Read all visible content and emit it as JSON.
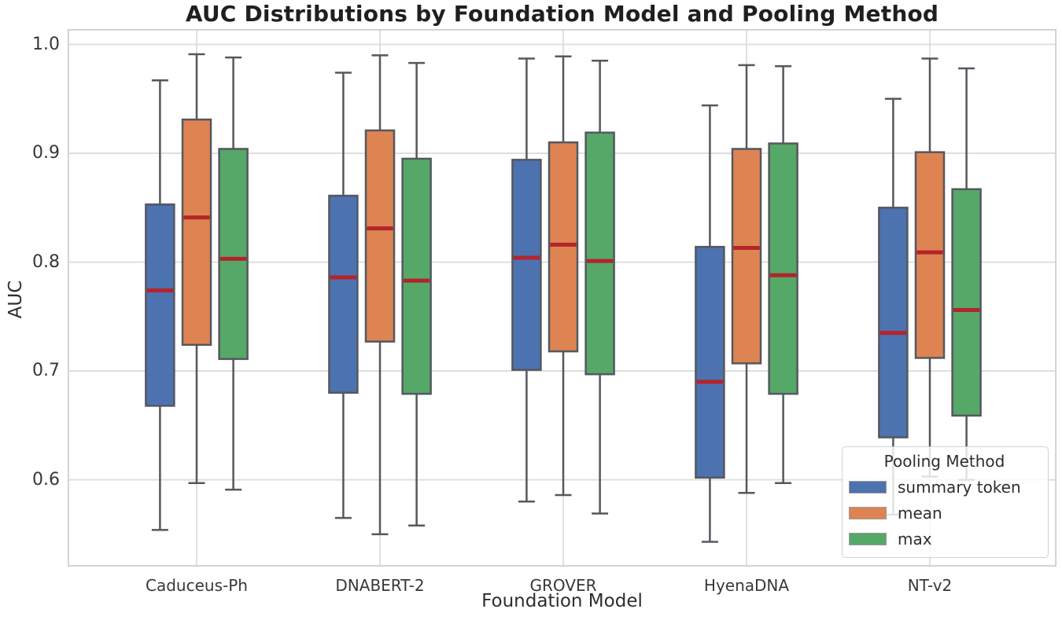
{
  "chart_data": {
    "type": "box",
    "title": "AUC Distributions by Foundation Model and Pooling Method",
    "xlabel": "Foundation Model",
    "ylabel": "AUC",
    "categories": [
      "Caduceus-Ph",
      "DNABERT-2",
      "GROVER",
      "HyenaDNA",
      "NT-v2"
    ],
    "yticks": [
      {
        "label": "1.0",
        "value": 1.0
      },
      {
        "label": "0.9",
        "value": 0.9
      },
      {
        "label": "0.8",
        "value": 0.8
      },
      {
        "label": "0.7",
        "value": 0.7
      },
      {
        "label": "0.6",
        "value": 0.6
      }
    ],
    "ylim": [
      0.5203,
      1.0141
    ],
    "grid": true,
    "legend": {
      "title": "Pooling Method",
      "position": "lower right"
    },
    "series": [
      {
        "name": "summary token",
        "color": "#4C72B0",
        "boxes": [
          {
            "whislo": 0.554,
            "q1": 0.668,
            "med": 0.774,
            "q3": 0.853,
            "whishi": 0.967
          },
          {
            "whislo": 0.565,
            "q1": 0.68,
            "med": 0.786,
            "q3": 0.861,
            "whishi": 0.974
          },
          {
            "whislo": 0.58,
            "q1": 0.701,
            "med": 0.804,
            "q3": 0.894,
            "whishi": 0.987
          },
          {
            "whislo": 0.543,
            "q1": 0.602,
            "med": 0.69,
            "q3": 0.814,
            "whishi": 0.944
          },
          {
            "whislo": 0.568,
            "q1": 0.639,
            "med": 0.735,
            "q3": 0.85,
            "whishi": 0.95
          }
        ]
      },
      {
        "name": "mean",
        "color": "#DD8452",
        "boxes": [
          {
            "whislo": 0.597,
            "q1": 0.724,
            "med": 0.841,
            "q3": 0.931,
            "whishi": 0.991
          },
          {
            "whislo": 0.55,
            "q1": 0.727,
            "med": 0.831,
            "q3": 0.921,
            "whishi": 0.99
          },
          {
            "whislo": 0.586,
            "q1": 0.718,
            "med": 0.816,
            "q3": 0.91,
            "whishi": 0.989
          },
          {
            "whislo": 0.588,
            "q1": 0.707,
            "med": 0.813,
            "q3": 0.904,
            "whishi": 0.981
          },
          {
            "whislo": 0.603,
            "q1": 0.712,
            "med": 0.809,
            "q3": 0.901,
            "whishi": 0.987
          }
        ]
      },
      {
        "name": "max",
        "color": "#55A868",
        "boxes": [
          {
            "whislo": 0.591,
            "q1": 0.711,
            "med": 0.803,
            "q3": 0.904,
            "whishi": 0.988
          },
          {
            "whislo": 0.558,
            "q1": 0.679,
            "med": 0.783,
            "q3": 0.895,
            "whishi": 0.983
          },
          {
            "whislo": 0.569,
            "q1": 0.697,
            "med": 0.801,
            "q3": 0.919,
            "whishi": 0.985
          },
          {
            "whislo": 0.597,
            "q1": 0.679,
            "med": 0.788,
            "q3": 0.909,
            "whishi": 0.98
          },
          {
            "whislo": 0.6,
            "q1": 0.659,
            "med": 0.756,
            "q3": 0.867,
            "whishi": 0.978
          }
        ]
      }
    ],
    "style": {
      "median_color": "#B5232A",
      "box_edge_color": "#54585E",
      "grid_color": "#DCDCDC",
      "spine_color": "#CFCFCF"
    }
  }
}
